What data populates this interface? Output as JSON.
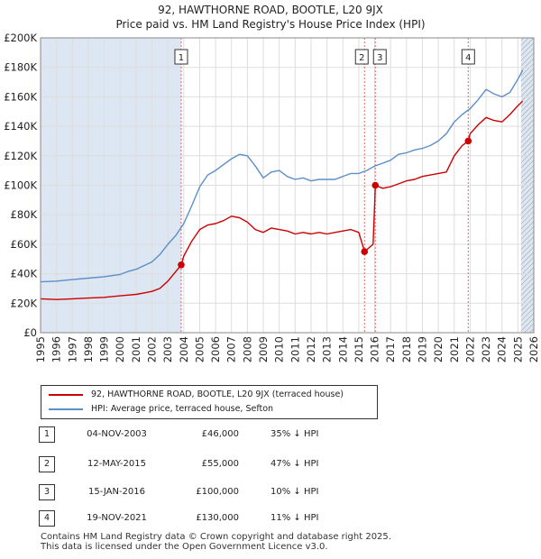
{
  "title_line1": "92, HAWTHORNE ROAD, BOOTLE, L20 9JX",
  "title_line2": "Price paid vs. HM Land Registry's House Price Index (HPI)",
  "colors": {
    "property": "#cc0000",
    "hpi": "#5b8fc7",
    "shade": "#dde6f3",
    "grid": "#dddddd",
    "marker_line": "#e06666"
  },
  "legend": {
    "property_label": "92, HAWTHORNE ROAD, BOOTLE, L20 9JX (terraced house)",
    "hpi_label": "HPI: Average price, terraced house, Sefton"
  },
  "transactions": [
    {
      "num": "1",
      "date": "04-NOV-2003",
      "price": "£46,000",
      "hpi_diff": "35% ↓ HPI"
    },
    {
      "num": "2",
      "date": "12-MAY-2015",
      "price": "£55,000",
      "hpi_diff": "47% ↓ HPI"
    },
    {
      "num": "3",
      "date": "15-JAN-2016",
      "price": "£100,000",
      "hpi_diff": "10% ↓ HPI"
    },
    {
      "num": "4",
      "date": "19-NOV-2021",
      "price": "£130,000",
      "hpi_diff": "11% ↓ HPI"
    }
  ],
  "footer_line1": "Contains HM Land Registry data © Crown copyright and database right 2025.",
  "footer_line2": "This data is licensed under the Open Government Licence v3.0.",
  "chart_data": {
    "type": "line",
    "title": "92, HAWTHORNE ROAD, BOOTLE, L20 9JX — Price paid vs. HM Land Registry's House Price Index (HPI)",
    "xlabel": "",
    "ylabel": "",
    "xlim": [
      1995,
      2026
    ],
    "ylim": [
      0,
      200000
    ],
    "y_ticks": [
      0,
      20000,
      40000,
      60000,
      80000,
      100000,
      120000,
      140000,
      160000,
      180000,
      200000
    ],
    "y_tick_labels": [
      "£0",
      "£20K",
      "£40K",
      "£60K",
      "£80K",
      "£100K",
      "£120K",
      "£140K",
      "£160K",
      "£180K",
      "£200K"
    ],
    "x_ticks": [
      1995,
      1996,
      1997,
      1998,
      1999,
      2000,
      2001,
      2002,
      2003,
      2004,
      2005,
      2006,
      2007,
      2008,
      2009,
      2010,
      2011,
      2012,
      2013,
      2014,
      2015,
      2016,
      2017,
      2018,
      2019,
      2020,
      2021,
      2022,
      2023,
      2024,
      2025,
      2026
    ],
    "x_tick_labels": [
      "1995",
      "1996",
      "1997",
      "1998",
      "1999",
      "2000",
      "2001",
      "2002",
      "2003",
      "2004",
      "2005",
      "2006",
      "2007",
      "2008",
      "2009",
      "2010",
      "2011",
      "2012",
      "2013",
      "2014",
      "2015",
      "2016",
      "2017",
      "2018",
      "2019",
      "2020",
      "2021",
      "2022",
      "2023",
      "2024",
      "2025",
      "2026"
    ],
    "grid": true,
    "shaded_spans": [
      [
        1995.0,
        2003.84
      ],
      [
        2025.2,
        2026.0
      ]
    ],
    "hatched_span": [
      2025.2,
      2026.0
    ],
    "series": [
      {
        "name": "HPI: Average price, terraced house, Sefton",
        "x": [
          1995,
          1996,
          1997,
          1998,
          1999,
          2000,
          2000.5,
          2001,
          2001.5,
          2002,
          2002.5,
          2003,
          2003.5,
          2004,
          2004.5,
          2005,
          2005.5,
          2006,
          2006.5,
          2007,
          2007.5,
          2008,
          2008.5,
          2009,
          2009.5,
          2010,
          2010.5,
          2011,
          2011.5,
          2012,
          2012.5,
          2013,
          2013.5,
          2014,
          2014.5,
          2015,
          2015.5,
          2016,
          2016.5,
          2017,
          2017.5,
          2018,
          2018.5,
          2019,
          2019.5,
          2020,
          2020.5,
          2021,
          2021.5,
          2022,
          2022.5,
          2023,
          2023.5,
          2024,
          2024.5,
          2025,
          2025.3
        ],
        "values": [
          34500,
          35000,
          36000,
          37000,
          38000,
          39500,
          41500,
          43000,
          45500,
          48000,
          53000,
          60000,
          66000,
          74000,
          86000,
          99000,
          107000,
          110000,
          114000,
          118000,
          121000,
          120000,
          113000,
          105000,
          109000,
          110000,
          106000,
          104000,
          105000,
          103000,
          104000,
          104000,
          104000,
          106000,
          108000,
          108000,
          110000,
          113000,
          115000,
          117000,
          121000,
          122000,
          124000,
          125000,
          127000,
          130000,
          135000,
          143000,
          148000,
          152000,
          158000,
          165000,
          162000,
          160000,
          163000,
          172000,
          178000
        ]
      },
      {
        "name": "92, HAWTHORNE ROAD, BOOTLE, L20 9JX (terraced house)",
        "x": [
          1995,
          1996,
          1997,
          1998,
          1999,
          2000,
          2000.5,
          2001,
          2001.5,
          2002,
          2002.5,
          2003,
          2003.84,
          2004,
          2004.5,
          2005,
          2005.5,
          2006,
          2006.5,
          2007,
          2007.5,
          2008,
          2008.5,
          2009,
          2009.5,
          2010,
          2010.5,
          2011,
          2011.5,
          2012,
          2012.5,
          2013,
          2013.5,
          2014,
          2014.5,
          2015.0,
          2015.36,
          2015.9,
          2016.04,
          2016.5,
          2017,
          2017.5,
          2018,
          2018.5,
          2019,
          2019.5,
          2020,
          2020.5,
          2021,
          2021.5,
          2021.88,
          2022,
          2022.5,
          2023,
          2023.5,
          2024,
          2024.5,
          2025,
          2025.3
        ],
        "values": [
          23000,
          22500,
          23000,
          23500,
          24000,
          25000,
          25500,
          26000,
          27000,
          28000,
          30000,
          35000,
          46000,
          52000,
          62000,
          70000,
          73000,
          74000,
          76000,
          79000,
          78000,
          75000,
          70000,
          68000,
          71000,
          70000,
          69000,
          67000,
          68000,
          67000,
          68000,
          67000,
          68000,
          69000,
          70000,
          68000,
          55000,
          60000,
          100000,
          98000,
          99000,
          101000,
          103000,
          104000,
          106000,
          107000,
          108000,
          109000,
          120000,
          127000,
          130000,
          135000,
          141000,
          146000,
          144000,
          143000,
          148000,
          154000,
          157000
        ]
      }
    ],
    "markers": [
      {
        "label": "1",
        "x": 2003.84,
        "y": 46000
      },
      {
        "label": "2",
        "x": 2015.36,
        "y": 55000
      },
      {
        "label": "3",
        "x": 2016.04,
        "y": 100000
      },
      {
        "label": "4",
        "x": 2021.88,
        "y": 130000
      }
    ]
  }
}
